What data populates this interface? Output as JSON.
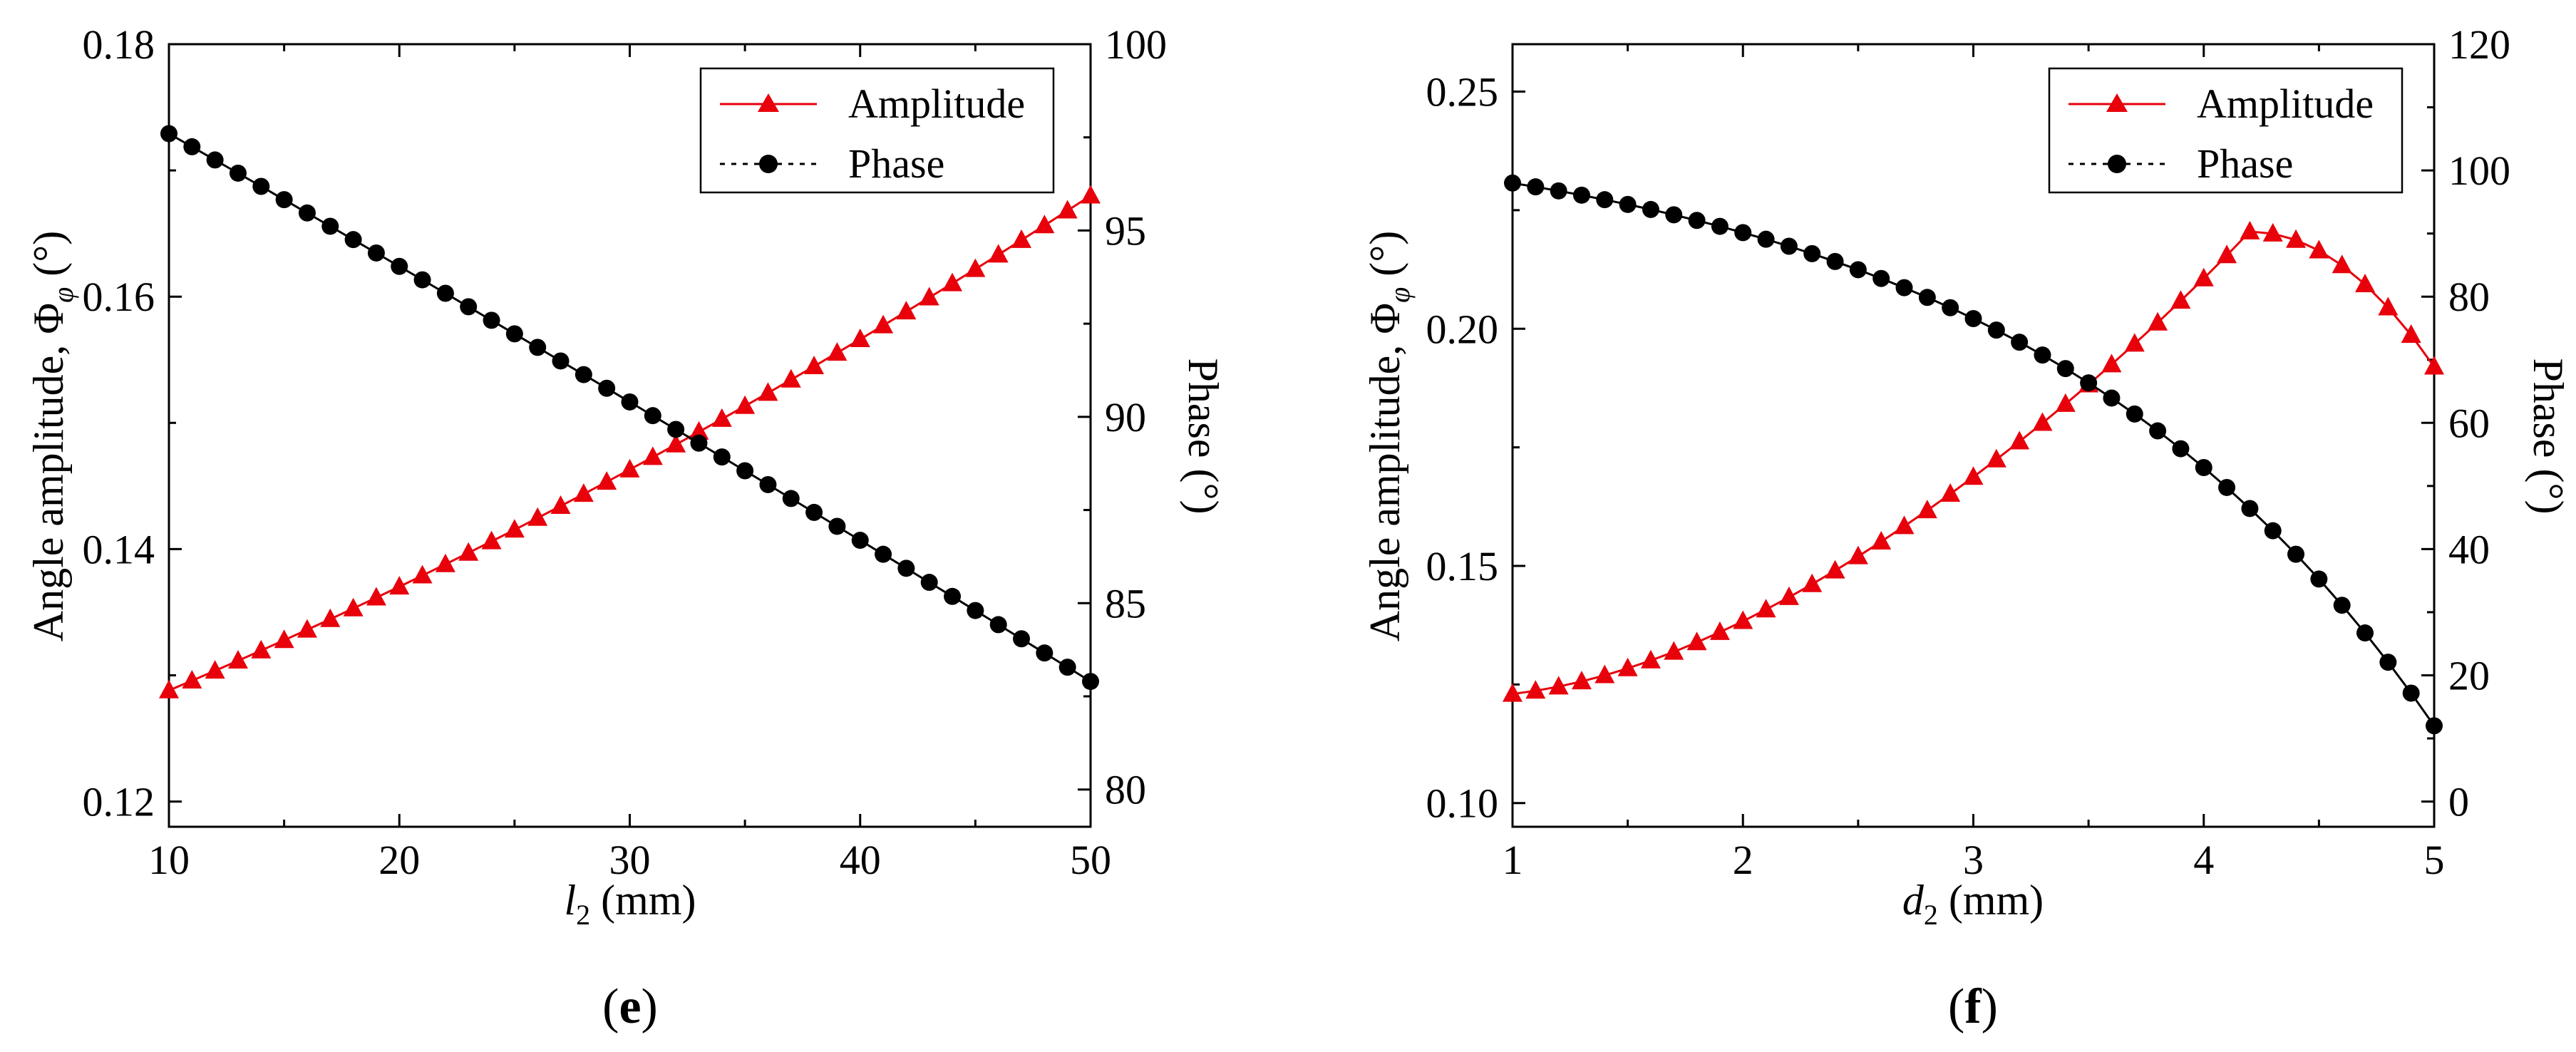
{
  "chart_data": [
    {
      "type": "line",
      "panel_label": "e",
      "xlabel": "l",
      "xlabel_subscript": "2",
      "xlabel_unit": " (mm)",
      "ylabel_left": "Angle amplitude, Φ",
      "ylabel_left_subscript": "φ",
      "ylabel_left_unit": " (°)",
      "ylabel_right": "Phase (°)",
      "xlim": [
        10,
        50
      ],
      "ylim_left": [
        0.118,
        0.18
      ],
      "ylim_right": [
        79,
        100
      ],
      "xticks": [
        10,
        20,
        30,
        40,
        50
      ],
      "yticks_left": [
        0.12,
        0.14,
        0.16,
        0.18
      ],
      "yticks_right": [
        80,
        85,
        90,
        95,
        100
      ],
      "ytick_labels_left": [
        "0.12",
        "0.14",
        "0.16",
        "0.18"
      ],
      "legend": [
        {
          "label": "Amplitude",
          "color": "#e8000b",
          "marker": "triangle",
          "linestyle": "solid"
        },
        {
          "label": "Phase",
          "color": "#000000",
          "marker": "circle",
          "linestyle": "dotted"
        }
      ],
      "legend_position": "top-right",
      "series": [
        {
          "name": "Amplitude",
          "axis": "left",
          "color": "#e8000b",
          "marker": "triangle",
          "x_start": 10,
          "x_end": 50,
          "n_markers": 41,
          "curve": "quadratic",
          "y_start": 0.1288,
          "y_mid": 0.1463,
          "y_end": 0.168
        },
        {
          "name": "Phase",
          "axis": "right",
          "color": "#000000",
          "marker": "circle",
          "x_start": 10,
          "x_end": 50,
          "n_markers": 41,
          "curve": "quadratic",
          "y_start": 97.6,
          "y_mid": 90.4,
          "y_end": 82.9
        }
      ]
    },
    {
      "type": "line",
      "panel_label": "f",
      "xlabel": "d",
      "xlabel_subscript": "2",
      "xlabel_unit": " (mm)",
      "ylabel_left": "Angle amplitude, Φ",
      "ylabel_left_subscript": "φ",
      "ylabel_left_unit": " (°)",
      "ylabel_right": "Phase (°)",
      "xlim": [
        1,
        5
      ],
      "ylim_left": [
        0.095,
        0.26
      ],
      "ylim_right": [
        -4,
        120
      ],
      "xticks": [
        1,
        2,
        3,
        4,
        5
      ],
      "yticks_left": [
        0.1,
        0.15,
        0.2,
        0.25
      ],
      "yticks_right": [
        0,
        20,
        40,
        60,
        80,
        100,
        120
      ],
      "ytick_labels_left": [
        "0.10",
        "0.15",
        "0.20",
        "0.25"
      ],
      "legend": [
        {
          "label": "Amplitude",
          "color": "#e8000b",
          "marker": "triangle",
          "linestyle": "solid"
        },
        {
          "label": "Phase",
          "color": "#000000",
          "marker": "circle",
          "linestyle": "dotted"
        }
      ],
      "legend_position": "top-right",
      "series": [
        {
          "name": "Amplitude",
          "axis": "left",
          "color": "#e8000b",
          "marker": "triangle",
          "x_start": 1,
          "x_end": 5,
          "n_markers": 41,
          "curve": "peaked",
          "y_start": 0.123,
          "y_peak": 0.2205,
          "x_peak": 4.2,
          "y_end": 0.192
        },
        {
          "name": "Phase",
          "axis": "right",
          "color": "#000000",
          "marker": "circle",
          "x_start": 1,
          "x_end": 5,
          "n_markers": 41,
          "curve": "decay",
          "y_start": 98.0,
          "y_end": 12.0
        }
      ]
    }
  ]
}
